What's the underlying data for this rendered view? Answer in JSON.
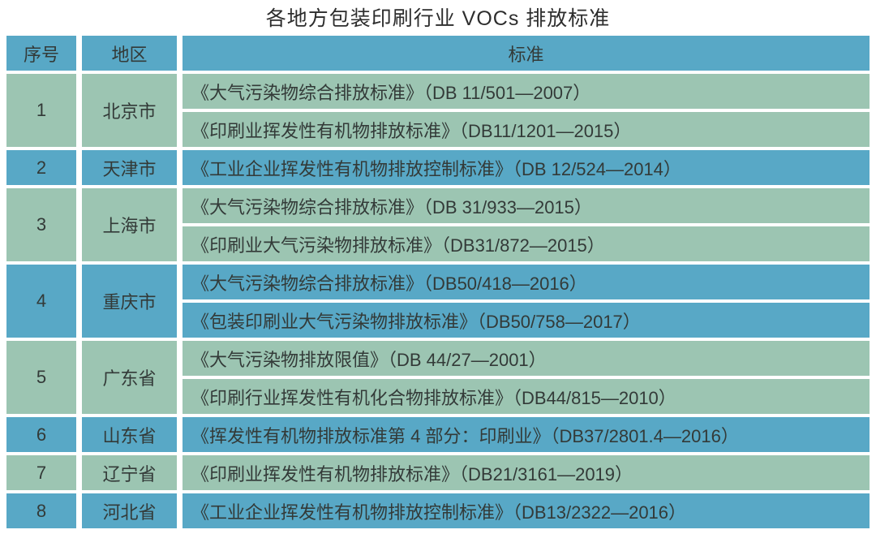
{
  "title": "各地方包装印刷行业 VOCs 排放标准",
  "colors": {
    "header_bg": "#58a8c6",
    "row_blue_bg": "#58a8c6",
    "row_green_bg": "#9cc5b2",
    "text": "#333a38",
    "page_bg": "#ffffff"
  },
  "table": {
    "headers": [
      "序号",
      "地区",
      "标准"
    ],
    "rows": [
      {
        "seq": "1",
        "region": "北京市",
        "standards": [
          "《大气污染物综合排放标准》（DB 11/501—2007）",
          "《印刷业挥发性有机物排放标准》（DB11/1201—2015）"
        ]
      },
      {
        "seq": "2",
        "region": "天津市",
        "standards": [
          "《工业企业挥发性有机物排放控制标准》（DB 12/524—2014）"
        ]
      },
      {
        "seq": "3",
        "region": "上海市",
        "standards": [
          "《大气污染物综合排放标准》（DB 31/933—2015）",
          "《印刷业大气污染物排放标准》（DB31/872—2015）"
        ]
      },
      {
        "seq": "4",
        "region": "重庆市",
        "standards": [
          "《大气污染物综合排放标准》（DB50/418—2016）",
          "《包装印刷业大气污染物排放标准》（DB50/758—2017）"
        ]
      },
      {
        "seq": "5",
        "region": "广东省",
        "standards": [
          "《大气污染物排放限值》（DB 44/27—2001）",
          "《印刷行业挥发性有机化合物排放标准》（DB44/815—2010）"
        ]
      },
      {
        "seq": "6",
        "region": "山东省",
        "standards": [
          "《挥发性有机物排放标准第 4 部分：印刷业》（DB37/2801.4—2016）"
        ]
      },
      {
        "seq": "7",
        "region": "辽宁省",
        "standards": [
          "《印刷业挥发性有机物排放标准》（DB21/3161—2019）"
        ]
      },
      {
        "seq": "8",
        "region": "河北省",
        "standards": [
          "《工业企业挥发性有机物排放控制标准》（DB13/2322—2016）"
        ]
      }
    ]
  },
  "chart_data": {
    "type": "table",
    "title": "各地方包装印刷行业 VOCs 排放标准",
    "columns": [
      "序号",
      "地区",
      "标准"
    ],
    "rows": [
      [
        "1",
        "北京市",
        "《大气污染物综合排放标准》（DB 11/501—2007）；《印刷业挥发性有机物排放标准》（DB11/1201—2015）"
      ],
      [
        "2",
        "天津市",
        "《工业企业挥发性有机物排放控制标准》（DB 12/524—2014）"
      ],
      [
        "3",
        "上海市",
        "《大气污染物综合排放标准》（DB 31/933—2015）；《印刷业大气污染物排放标准》（DB31/872—2015）"
      ],
      [
        "4",
        "重庆市",
        "《大气污染物综合排放标准》（DB50/418—2016）；《包装印刷业大气污染物排放标准》（DB50/758—2017）"
      ],
      [
        "5",
        "广东省",
        "《大气污染物排放限值》（DB 44/27—2001）；《印刷行业挥发性有机化合物排放标准》（DB44/815—2010）"
      ],
      [
        "6",
        "山东省",
        "《挥发性有机物排放标准第 4 部分：印刷业》（DB37/2801.4—2016）"
      ],
      [
        "7",
        "辽宁省",
        "《印刷业挥发性有机物排放标准》（DB21/3161—2019）"
      ],
      [
        "8",
        "河北省",
        "《工业企业挥发性有机物排放控制标准》（DB13/2322—2016）"
      ]
    ]
  }
}
